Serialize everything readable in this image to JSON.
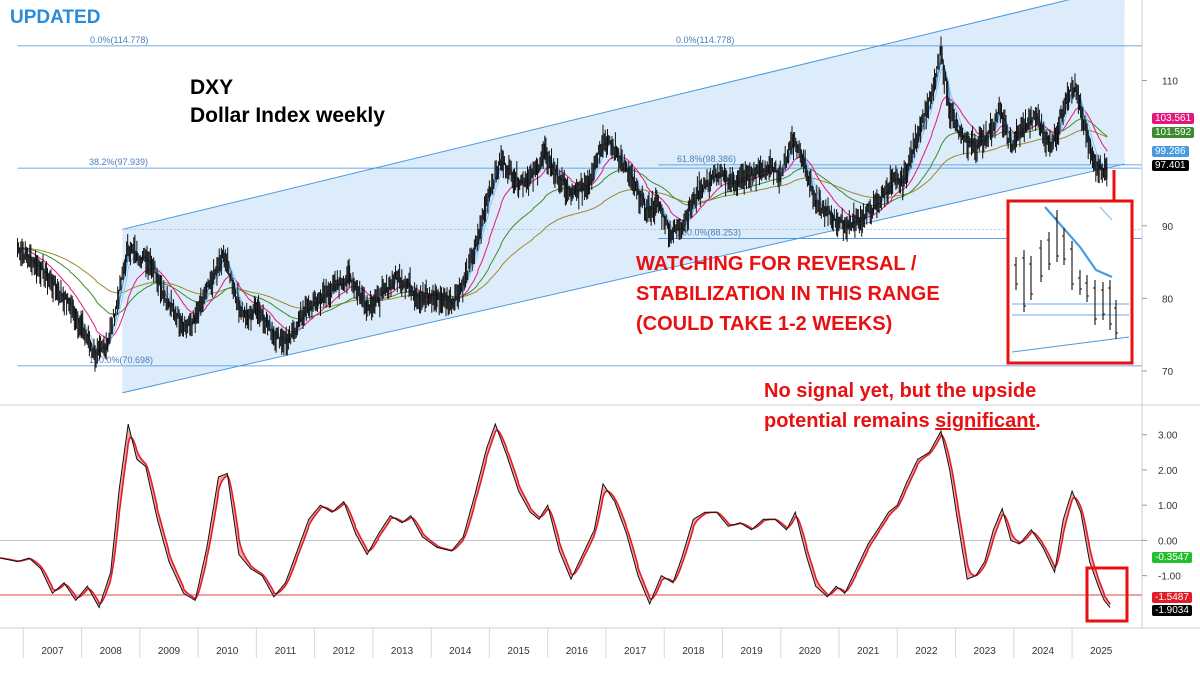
{
  "header": {
    "updated_label": "UPDATED"
  },
  "chart_data": {
    "type": "line",
    "title": "DXY",
    "subtitle": "Dollar Index weekly",
    "x_tick_labels": [
      "2007",
      "2008",
      "2009",
      "2010",
      "2011",
      "2012",
      "2013",
      "2014",
      "2015",
      "2016",
      "2017",
      "2018",
      "2019",
      "2020",
      "2021",
      "2022",
      "2023",
      "2024",
      "2025"
    ],
    "price_axis": {
      "ylim": [
        66,
        120
      ],
      "ticks": [
        "110",
        "90",
        "80",
        "70"
      ]
    },
    "osc_axis": {
      "ylim": [
        -2.4,
        3.7
      ],
      "ticks": [
        "3.00",
        "2.00",
        "1.00",
        "0.00",
        "-1.00"
      ]
    },
    "price_series": {
      "name": "DXY weekly close",
      "points": [
        [
          2006.9,
          87
        ],
        [
          2007.3,
          84
        ],
        [
          2007.8,
          79
        ],
        [
          2008.0,
          76
        ],
        [
          2008.25,
          72
        ],
        [
          2008.45,
          74
        ],
        [
          2008.6,
          79
        ],
        [
          2008.8,
          87
        ],
        [
          2008.95,
          86
        ],
        [
          2009.2,
          85
        ],
        [
          2009.5,
          79
        ],
        [
          2009.8,
          76
        ],
        [
          2009.95,
          77
        ],
        [
          2010.15,
          81
        ],
        [
          2010.45,
          86
        ],
        [
          2010.7,
          79
        ],
        [
          2010.85,
          77
        ],
        [
          2011.0,
          79
        ],
        [
          2011.3,
          75
        ],
        [
          2011.55,
          74
        ],
        [
          2011.8,
          78
        ],
        [
          2012.1,
          80
        ],
        [
          2012.4,
          82
        ],
        [
          2012.6,
          83
        ],
        [
          2012.9,
          79
        ],
        [
          2013.1,
          80
        ],
        [
          2013.4,
          83
        ],
        [
          2013.6,
          82
        ],
        [
          2013.8,
          80
        ],
        [
          2014.1,
          80
        ],
        [
          2014.35,
          79.5
        ],
        [
          2014.55,
          82
        ],
        [
          2014.8,
          88
        ],
        [
          2015.0,
          95
        ],
        [
          2015.2,
          99
        ],
        [
          2015.5,
          96
        ],
        [
          2015.75,
          97
        ],
        [
          2015.95,
          100
        ],
        [
          2016.15,
          97
        ],
        [
          2016.4,
          94
        ],
        [
          2016.7,
          96
        ],
        [
          2016.95,
          102
        ],
        [
          2017.2,
          100
        ],
        [
          2017.45,
          96
        ],
        [
          2017.7,
          92
        ],
        [
          2017.9,
          93
        ],
        [
          2018.1,
          89
        ],
        [
          2018.3,
          90
        ],
        [
          2018.6,
          95
        ],
        [
          2018.9,
          97
        ],
        [
          2019.2,
          96
        ],
        [
          2019.5,
          97
        ],
        [
          2019.8,
          98
        ],
        [
          2020.0,
          97
        ],
        [
          2020.2,
          102
        ],
        [
          2020.4,
          99
        ],
        [
          2020.6,
          93
        ],
        [
          2020.9,
          91
        ],
        [
          2021.1,
          90
        ],
        [
          2021.4,
          91
        ],
        [
          2021.65,
          93
        ],
        [
          2021.9,
          96
        ],
        [
          2022.1,
          96
        ],
        [
          2022.4,
          104
        ],
        [
          2022.6,
          108
        ],
        [
          2022.75,
          114
        ],
        [
          2022.9,
          106
        ],
        [
          2023.1,
          102
        ],
        [
          2023.35,
          101
        ],
        [
          2023.6,
          103
        ],
        [
          2023.75,
          106
        ],
        [
          2023.95,
          101
        ],
        [
          2024.2,
          104
        ],
        [
          2024.4,
          105
        ],
        [
          2024.6,
          101
        ],
        [
          2024.75,
          103
        ],
        [
          2024.9,
          108
        ],
        [
          2025.05,
          109
        ],
        [
          2025.2,
          104
        ],
        [
          2025.35,
          99
        ],
        [
          2025.5,
          98
        ],
        [
          2025.6,
          97.4
        ]
      ]
    },
    "indicator_series": {
      "name": "Momentum oscillator",
      "points": [
        [
          2006.6,
          -0.5
        ],
        [
          2006.9,
          -0.6
        ],
        [
          2007.1,
          -0.5
        ],
        [
          2007.3,
          -0.8
        ],
        [
          2007.5,
          -1.5
        ],
        [
          2007.7,
          -1.2
        ],
        [
          2007.9,
          -1.7
        ],
        [
          2008.1,
          -1.3
        ],
        [
          2008.3,
          -1.9
        ],
        [
          2008.5,
          -0.9
        ],
        [
          2008.65,
          1.5
        ],
        [
          2008.8,
          3.3
        ],
        [
          2008.95,
          2.3
        ],
        [
          2009.1,
          2.1
        ],
        [
          2009.3,
          0.6
        ],
        [
          2009.5,
          -0.6
        ],
        [
          2009.75,
          -1.5
        ],
        [
          2009.95,
          -1.7
        ],
        [
          2010.15,
          -0.2
        ],
        [
          2010.35,
          1.8
        ],
        [
          2010.5,
          1.9
        ],
        [
          2010.7,
          -0.4
        ],
        [
          2010.9,
          -0.8
        ],
        [
          2011.1,
          -1.0
        ],
        [
          2011.3,
          -1.6
        ],
        [
          2011.5,
          -1.2
        ],
        [
          2011.7,
          -0.3
        ],
        [
          2011.9,
          0.6
        ],
        [
          2012.1,
          1.0
        ],
        [
          2012.3,
          0.8
        ],
        [
          2012.5,
          1.1
        ],
        [
          2012.7,
          0.2
        ],
        [
          2012.9,
          -0.4
        ],
        [
          2013.1,
          0.2
        ],
        [
          2013.3,
          0.7
        ],
        [
          2013.5,
          0.5
        ],
        [
          2013.65,
          0.7
        ],
        [
          2013.85,
          0.1
        ],
        [
          2014.1,
          -0.2
        ],
        [
          2014.35,
          -0.3
        ],
        [
          2014.55,
          0.1
        ],
        [
          2014.75,
          1.3
        ],
        [
          2014.95,
          2.6
        ],
        [
          2015.1,
          3.3
        ],
        [
          2015.3,
          2.4
        ],
        [
          2015.5,
          1.4
        ],
        [
          2015.7,
          0.8
        ],
        [
          2015.85,
          0.6
        ],
        [
          2016.0,
          1.0
        ],
        [
          2016.2,
          -0.3
        ],
        [
          2016.4,
          -1.1
        ],
        [
          2016.6,
          -0.4
        ],
        [
          2016.8,
          0.3
        ],
        [
          2016.95,
          1.6
        ],
        [
          2017.15,
          1.1
        ],
        [
          2017.35,
          0.2
        ],
        [
          2017.55,
          -1.0
        ],
        [
          2017.75,
          -1.8
        ],
        [
          2017.95,
          -1.0
        ],
        [
          2018.15,
          -1.2
        ],
        [
          2018.3,
          -0.5
        ],
        [
          2018.5,
          0.6
        ],
        [
          2018.7,
          0.8
        ],
        [
          2018.9,
          0.8
        ],
        [
          2019.1,
          0.4
        ],
        [
          2019.3,
          0.5
        ],
        [
          2019.5,
          0.3
        ],
        [
          2019.7,
          0.6
        ],
        [
          2019.9,
          0.6
        ],
        [
          2020.1,
          0.3
        ],
        [
          2020.25,
          0.8
        ],
        [
          2020.45,
          -0.5
        ],
        [
          2020.6,
          -1.3
        ],
        [
          2020.8,
          -1.6
        ],
        [
          2020.95,
          -1.3
        ],
        [
          2021.1,
          -1.5
        ],
        [
          2021.3,
          -0.8
        ],
        [
          2021.5,
          -0.1
        ],
        [
          2021.7,
          0.4
        ],
        [
          2021.85,
          0.8
        ],
        [
          2022.0,
          1.0
        ],
        [
          2022.15,
          1.6
        ],
        [
          2022.35,
          2.3
        ],
        [
          2022.55,
          2.5
        ],
        [
          2022.75,
          3.1
        ],
        [
          2022.9,
          2.0
        ],
        [
          2023.05,
          0.4
        ],
        [
          2023.2,
          -1.1
        ],
        [
          2023.35,
          -1.0
        ],
        [
          2023.5,
          -0.6
        ],
        [
          2023.65,
          0.3
        ],
        [
          2023.8,
          0.9
        ],
        [
          2023.95,
          0.0
        ],
        [
          2024.1,
          -0.1
        ],
        [
          2024.3,
          0.3
        ],
        [
          2024.5,
          -0.2
        ],
        [
          2024.7,
          -0.9
        ],
        [
          2024.85,
          0.6
        ],
        [
          2025.0,
          1.4
        ],
        [
          2025.15,
          0.8
        ],
        [
          2025.3,
          -0.6
        ],
        [
          2025.45,
          -1.3
        ],
        [
          2025.55,
          -1.7
        ],
        [
          2025.65,
          -1.9
        ]
      ]
    },
    "fibonacci_levels": [
      {
        "label": "0.0%(114.778)",
        "value": 114.778
      },
      {
        "label": "38.2%(97.939)",
        "value": 97.939
      },
      {
        "label": "61.8%(98.386)",
        "value": 98.386
      },
      {
        "label": "100.0%(88.253)",
        "value": 88.253
      },
      {
        "label": "100.0%(70.698)",
        "value": 70.698
      }
    ],
    "channel": {
      "lower": [
        [
          2008.7,
          67
        ],
        [
          2025.9,
          98.5
        ]
      ],
      "upper": [
        [
          2008.7,
          89.5
        ],
        [
          2025.9,
          123
        ]
      ]
    },
    "price_badges": [
      {
        "value": "103.561",
        "color": "#e5177e",
        "text_color": "#ffffff"
      },
      {
        "value": "101.592",
        "color": "#3c8c2e",
        "text_color": "#ffffff"
      },
      {
        "value": "99.286",
        "color": "#4a9ae0",
        "text_color": "#ffffff"
      },
      {
        "value": "97.401",
        "color": "#000000",
        "text_color": "#ffffff"
      }
    ],
    "osc_badges": [
      {
        "value": "-0.3547",
        "color": "#22c02c",
        "text_color": "#ffffff"
      },
      {
        "value": "-1.5487",
        "color": "#e21d2b",
        "text_color": "#ffffff"
      },
      {
        "value": "-1.9034",
        "color": "#000000",
        "text_color": "#ffffff"
      }
    ],
    "osc_threshold": -1.5487
  },
  "annotations": {
    "watch_line1": "WATCHING FOR REVERSAL /",
    "watch_line2": "STABILIZATION IN THIS RANGE",
    "watch_line3": "(COULD TAKE 1-2 WEEKS)",
    "signal_line1": "No signal yet, but the upside",
    "signal_line2_pre": "potential remains ",
    "signal_line2_emph": "significant",
    "signal_line2_post": "."
  },
  "colors": {
    "channel_fill": "#dcecfb",
    "channel_line": "#4a9ae0",
    "fib_line": "#3f8fd8",
    "annotation_red": "#e81010",
    "price_line": "#111111",
    "ma_fast": "#4a9ae0",
    "ma_mid": "#e5177e",
    "ma_slow": "#3c8c2e",
    "ma_long": "#9c8a2c",
    "osc_fill": "#f4a0a0",
    "osc_signal": "#e21d2b",
    "updated_blue": "#2a8bd8"
  }
}
